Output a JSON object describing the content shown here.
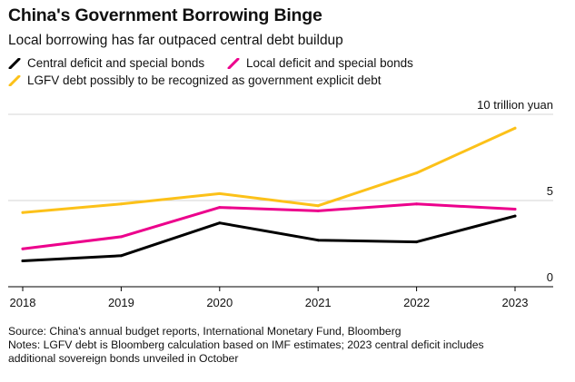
{
  "header": {
    "title": "China's Government Borrowing Binge",
    "subtitle": "Local borrowing has far outpaced central debt buildup"
  },
  "colors": {
    "central": "#000000",
    "local": "#ec008c",
    "lgfv": "#fcc119",
    "grid": "#d4d4d4"
  },
  "chart_data": {
    "type": "line",
    "title": "China's Government Borrowing Binge",
    "subtitle": "Local borrowing has far outpaced central debt buildup",
    "x": [
      "2018",
      "2019",
      "2020",
      "2021",
      "2022",
      "2023"
    ],
    "xlabel": "",
    "ylabel": "trillion yuan",
    "ylim": [
      0,
      10
    ],
    "y_ticks": [
      {
        "value": 10,
        "label": "10 trillion yuan"
      },
      {
        "value": 5,
        "label": "5"
      },
      {
        "value": 0,
        "label": "0"
      }
    ],
    "grid": true,
    "legend_position": "top-left",
    "series": [
      {
        "key": "central",
        "name": "Central deficit and special bonds",
        "values": [
          1.5,
          1.8,
          3.7,
          2.7,
          2.6,
          4.1
        ]
      },
      {
        "key": "local",
        "name": "Local deficit and special bonds",
        "values": [
          2.2,
          2.9,
          4.6,
          4.4,
          4.8,
          4.5
        ]
      },
      {
        "key": "lgfv",
        "name": "LGFV debt possibly to be recognized as government explicit debt",
        "values": [
          4.3,
          4.8,
          5.4,
          4.7,
          6.6,
          9.2
        ]
      }
    ]
  },
  "footer": {
    "source": "Source: China's annual budget reports, International Monetary Fund, Bloomberg",
    "notes": "Notes: LGFV debt is Bloomberg calculation based on IMF estimates; 2023 central deficit includes",
    "notes_continued": "additional sovereign bonds unveiled in October"
  }
}
